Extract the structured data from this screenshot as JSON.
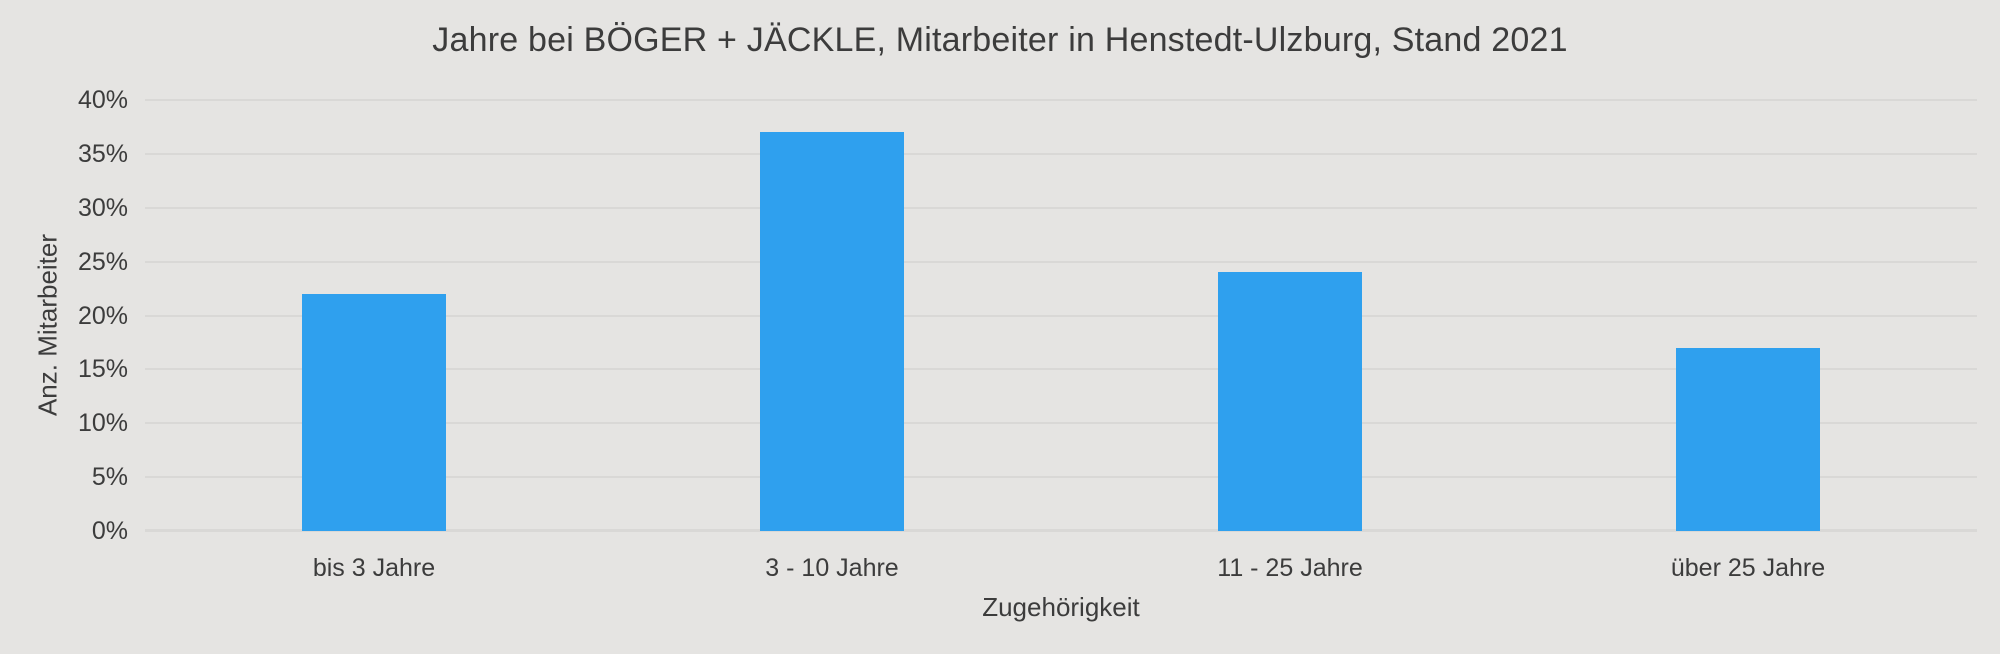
{
  "figure": {
    "background_color": "#e5e4e2",
    "gridline_color": "#d9d8d6",
    "text_color": "#3c3c3c"
  },
  "chart_data": {
    "type": "bar",
    "title": "Jahre bei BÖGER + JÄCKLE, Mitarbeiter in Henstedt-Ulzburg, Stand 2021",
    "categories": [
      "bis 3 Jahre",
      "3 - 10 Jahre",
      "11 - 25 Jahre",
      "über 25 Jahre"
    ],
    "values": [
      22,
      37,
      24,
      17
    ],
    "xlabel": "Zugehörigkeit",
    "ylabel": "Anz. Mitarbeiter",
    "ylim": [
      0,
      40
    ],
    "ytick_step": 5,
    "ytick_suffix": "%",
    "bar_color": "#2fa0ee",
    "grid": true,
    "legend": false
  }
}
